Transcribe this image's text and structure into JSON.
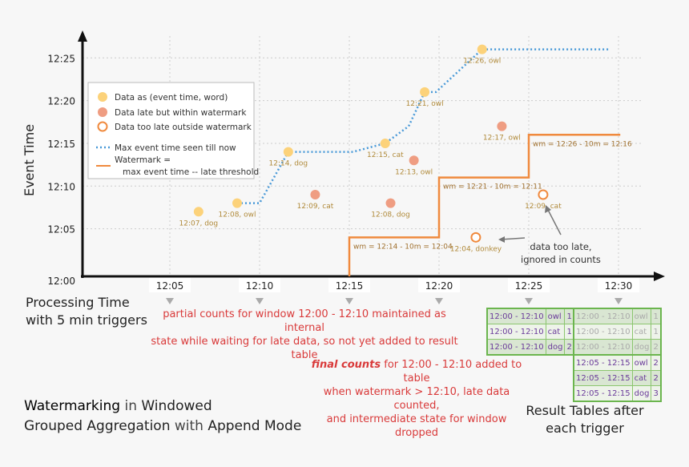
{
  "y_axis_label": "Event Time",
  "x_axis_label": "Processing Time\nwith 5 min triggers",
  "y_ticks": [
    "12:00",
    "12:05",
    "12:10",
    "12:15",
    "12:20",
    "12:25"
  ],
  "x_ticks": [
    "12:05",
    "12:10",
    "12:15",
    "12:20",
    "12:25",
    "12:30"
  ],
  "legend": {
    "on_time": "Data as (event time, word)",
    "late": "Data late but within watermark",
    "too_late": "Data too late outside watermark",
    "max_line": "Max event time seen till now",
    "wm_line_1": "Watermark =",
    "wm_line_2": "max event time -- late threshold"
  },
  "colors": {
    "on_time": "#fcd27a",
    "late": "#ef9d82",
    "too_late": "#f08a3e",
    "max_line": "#4a9ad8",
    "watermark": "#f08a3e",
    "label": "#b08a3a",
    "red_text": "#d93a3a"
  },
  "points": [
    {
      "type": "on_time",
      "processing_time": "12:06:36",
      "event_time": "12:07",
      "label": "12:07, dog"
    },
    {
      "type": "on_time",
      "processing_time": "12:08:45",
      "event_time": "12:08",
      "label": "12:08, owl"
    },
    {
      "type": "on_time",
      "processing_time": "12:11:36",
      "event_time": "12:14",
      "label": "12:14, dog"
    },
    {
      "type": "on_time",
      "processing_time": "12:17:00",
      "event_time": "12:15",
      "label": "12:15, cat"
    },
    {
      "type": "on_time",
      "processing_time": "12:19:12",
      "event_time": "12:21",
      "label": "12:21, owl"
    },
    {
      "type": "on_time",
      "processing_time": "12:22:24",
      "event_time": "12:26",
      "label": "12:26, owl"
    },
    {
      "type": "late",
      "processing_time": "12:13:06",
      "event_time": "12:09",
      "label": "12:09, cat"
    },
    {
      "type": "late",
      "processing_time": "12:17:18",
      "event_time": "12:08",
      "label": "12:08, dog"
    },
    {
      "type": "late",
      "processing_time": "12:18:36",
      "event_time": "12:13",
      "label": "12:13, owl"
    },
    {
      "type": "late",
      "processing_time": "12:23:30",
      "event_time": "12:17",
      "label": "12:17, owl"
    },
    {
      "type": "too_late",
      "processing_time": "12:22:03",
      "event_time": "12:04",
      "label": "12:04, donkey"
    },
    {
      "type": "too_late",
      "processing_time": "12:25:48",
      "event_time": "12:09",
      "label": "12:09, cat"
    }
  ],
  "watermark_labels": [
    "wm = 12:14 - 10m = 12:04",
    "wm = 12:21 - 10m = 12:11",
    "wm = 12:26 - 10m = 12:16"
  ],
  "annotation_too_late": "data too late,\nignored in counts",
  "note_partial": "partial counts for window 12:00 - 12:10 maintained as internal\nstate while waiting for late data, so not yet added  to result table",
  "note_final_em": "final counts",
  "note_final": " for 12:00 - 12:10 added to table\nwhen watermark > 12:10, late data counted,\nand intermediate state for window dropped",
  "title_parts": [
    "Watermarking",
    " in ",
    "Windowed",
    "\nGrouped Aggregation",
    " with ",
    "Append Mode"
  ],
  "result_caption": "Result Tables after\neach trigger",
  "table_1225": [
    [
      "12:00 - 12:10",
      "owl",
      "1"
    ],
    [
      "12:00 - 12:10",
      "cat",
      "1"
    ],
    [
      "12:00 - 12:10",
      "dog",
      "2"
    ]
  ],
  "table_1230": [
    [
      "12:00 - 12:10",
      "owl",
      "1"
    ],
    [
      "12:00 - 12:10",
      "cat",
      "1"
    ],
    [
      "12:00 - 12:10",
      "dog",
      "2"
    ],
    [
      "12:05 - 12:15",
      "owl",
      "2"
    ],
    [
      "12:05 - 12:15",
      "cat",
      "2"
    ],
    [
      "12:05 - 12:15",
      "dog",
      "3"
    ]
  ]
}
